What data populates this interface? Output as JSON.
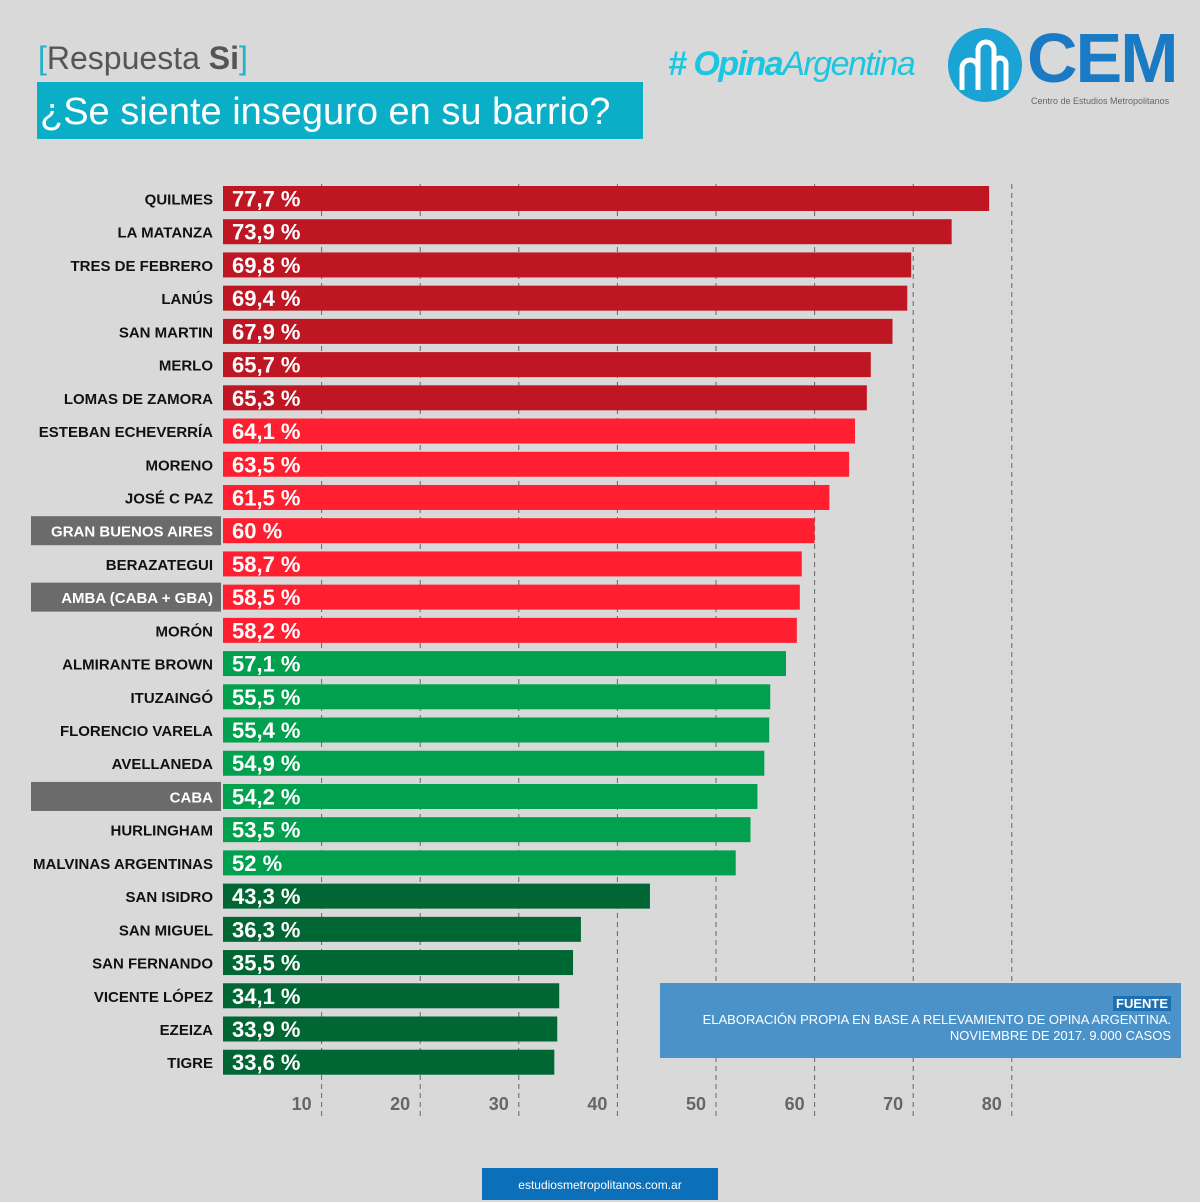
{
  "header": {
    "subtitle_prefix": "Respuesta",
    "subtitle_bold": "Si",
    "title": "¿Se siente inseguro en su barrio?",
    "logo_opina_1": "Opina",
    "logo_opina_2": "Argentina",
    "logo_cem": "CEM",
    "logo_cem_sub": "Centro de Estudios Metropolitanos"
  },
  "source": {
    "heading": "FUENTE",
    "line1": "ELABORACIÓN PROPIA EN BASE A RELEVAMIENTO DE OPINA ARGENTINA.",
    "line2": "NOVIEMBRE DE 2017. 9.000 CASOS"
  },
  "footer": {
    "url": "estudiosmetropolitanos.com.ar"
  },
  "colors": {
    "dark_red": "#be1622",
    "red": "#ff1f30",
    "green": "#00a04f",
    "dark_green": "#006633",
    "highlight": "#6b6b6b"
  },
  "chart_data": {
    "type": "bar",
    "orientation": "horizontal",
    "xlim": [
      0,
      80
    ],
    "xticks": [
      "10",
      "20",
      "30",
      "40",
      "50",
      "60",
      "70",
      "80"
    ],
    "grid": true,
    "categories": [
      "QUILMES",
      "LA MATANZA",
      "TRES DE FEBRERO",
      "LANÚS",
      "SAN MARTIN",
      "MERLO",
      "LOMAS DE ZAMORA",
      "ESTEBAN ECHEVERRÍA",
      "MORENO",
      "JOSÉ C PAZ",
      "GRAN BUENOS AIRES",
      "BERAZATEGUI",
      "AMBA (CABA + GBA)",
      "MORÓN",
      "ALMIRANTE BROWN",
      "ITUZAINGÓ",
      "FLORENCIO VARELA",
      "AVELLANEDA",
      "CABA",
      "HURLINGHAM",
      "MALVINAS ARGENTINAS",
      "SAN ISIDRO",
      "SAN MIGUEL",
      "SAN FERNANDO",
      "VICENTE LÓPEZ",
      "EZEIZA",
      "TIGRE"
    ],
    "values": [
      77.7,
      73.9,
      69.8,
      69.4,
      67.9,
      65.7,
      65.3,
      64.1,
      63.5,
      61.5,
      60,
      58.7,
      58.5,
      58.2,
      57.1,
      55.5,
      55.4,
      54.9,
      54.2,
      53.5,
      52,
      43.3,
      36.3,
      35.5,
      34.1,
      33.9,
      33.6
    ],
    "labels": [
      "77,7 %",
      "73,9 %",
      "69,8 %",
      "69,4 %",
      "67,9 %",
      "65,7 %",
      "65,3 %",
      "64,1 %",
      "63,5 %",
      "61,5 %",
      "60 %",
      "58,7 %",
      "58,5 %",
      "58,2 %",
      "57,1 %",
      "55,5 %",
      "55,4 %",
      "54,9 %",
      "54,2 %",
      "53,5 %",
      "52 %",
      "43,3 %",
      "36,3 %",
      "35,5 %",
      "34,1 %",
      "33,9 %",
      "33,6 %"
    ],
    "color_group": [
      "dark_red",
      "dark_red",
      "dark_red",
      "dark_red",
      "dark_red",
      "dark_red",
      "dark_red",
      "red",
      "red",
      "red",
      "red",
      "red",
      "red",
      "red",
      "green",
      "green",
      "green",
      "green",
      "green",
      "green",
      "green",
      "dark_green",
      "dark_green",
      "dark_green",
      "dark_green",
      "dark_green",
      "dark_green"
    ],
    "highlighted": [
      "GRAN BUENOS AIRES",
      "AMBA (CABA + GBA)",
      "CABA"
    ]
  }
}
